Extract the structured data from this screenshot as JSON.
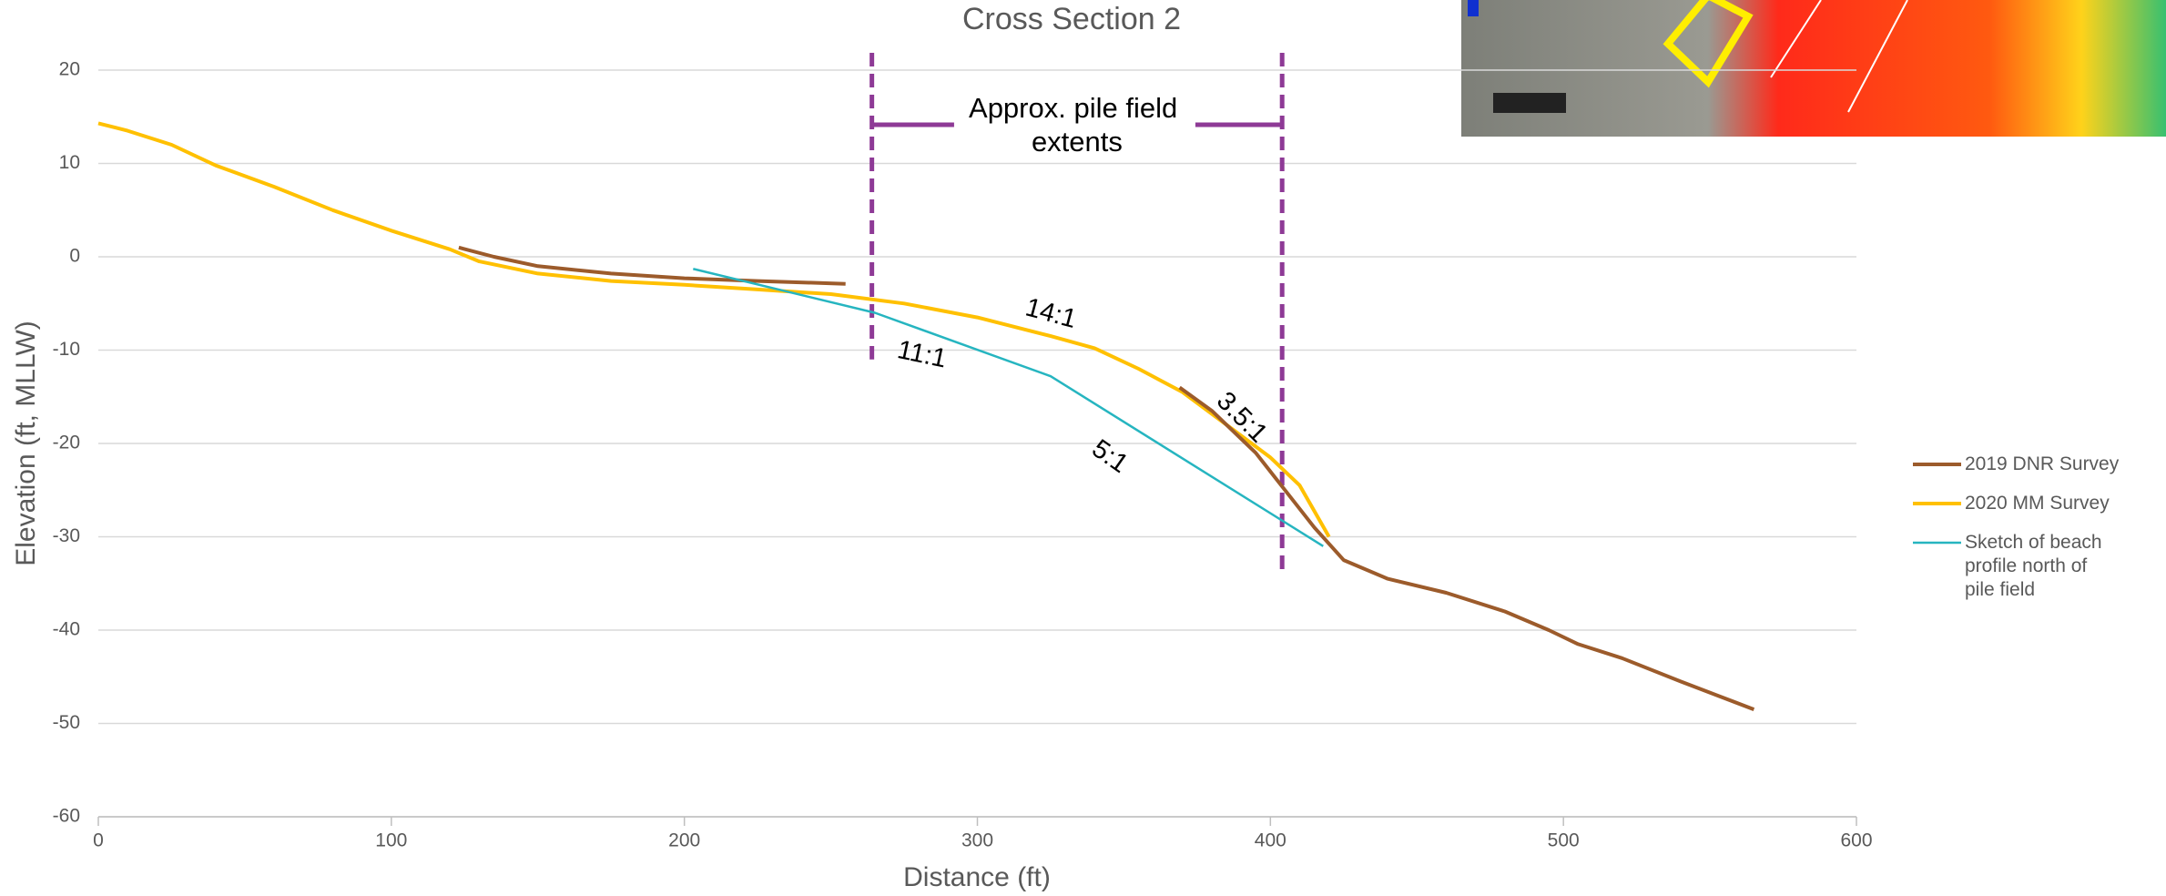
{
  "chart_data": {
    "type": "line",
    "title": "Cross Section 2",
    "x_label": "Distance (ft)",
    "y_label": "Elevation (ft, MLLW)",
    "xlim": [
      0,
      600
    ],
    "xticks": [
      0,
      100,
      200,
      300,
      400,
      500,
      600
    ],
    "ylim": [
      -60,
      20
    ],
    "yticks": [
      -60,
      -50,
      -40,
      -30,
      -20,
      -10,
      0,
      10,
      20
    ],
    "grid": true,
    "legend": "right",
    "series": [
      {
        "name": "2019 DNR Survey",
        "color": "#9c5b2b",
        "x": [
          123,
          135,
          150,
          175,
          200,
          225,
          255,
          300,
          369,
          380,
          395,
          405,
          415,
          425,
          440,
          460,
          480,
          495,
          505,
          520,
          540,
          565
        ],
        "values": [
          1,
          0,
          -1,
          -1.8,
          -2.3,
          -2.6,
          -2.9,
          null,
          -14,
          -16.5,
          -21,
          -25,
          -29,
          -32.5,
          -34.5,
          -36,
          -38,
          -40,
          -41.5,
          -43,
          -45.5,
          -48.5
        ]
      },
      {
        "name": "2020 MM Survey",
        "color": "#ffc000",
        "x": [
          0,
          10,
          25,
          40,
          60,
          80,
          100,
          120,
          130,
          150,
          175,
          200,
          225,
          250,
          275,
          300,
          325,
          340,
          355,
          370,
          385,
          400,
          410,
          420
        ],
        "values": [
          14.3,
          13.5,
          12,
          9.8,
          7.5,
          5,
          2.8,
          0.8,
          -0.5,
          -1.8,
          -2.6,
          -3,
          -3.5,
          -4,
          -5,
          -6.5,
          -8.5,
          -9.8,
          -12,
          -14.5,
          -18,
          -21.5,
          -24.5,
          -30
        ]
      },
      {
        "name": "Sketch of beach profile north of pile field",
        "color": "#26b5c0",
        "x": [
          203,
          265,
          325,
          418
        ],
        "values": [
          -1.3,
          -6,
          -12.8,
          -31
        ]
      }
    ],
    "pile_field": {
      "label": "Approx. pile field extents",
      "x": [
        264,
        404
      ],
      "color": "#8e3a96"
    },
    "annotations": [
      "14:1",
      "11:1",
      "3.5:1",
      "5:1"
    ]
  }
}
